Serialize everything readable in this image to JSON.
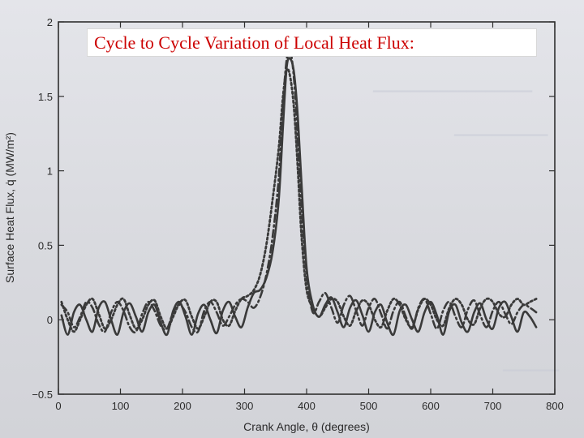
{
  "slide_title": "Cycle to Cycle Variation of Local Heat Flux:",
  "colors": {
    "title": "#cc0000",
    "line": "#3a3a3a",
    "background": "#dcdde2"
  },
  "chart_data": {
    "type": "line",
    "title": "",
    "xlabel": "Crank Angle, θ (degrees)",
    "ylabel": "Surface Heat Flux, q̇ (MW/m²)",
    "xlim": [
      0,
      800
    ],
    "ylim": [
      -0.5,
      2
    ],
    "xticks": [
      "0",
      "100",
      "200",
      "300",
      "400",
      "500",
      "600",
      "700",
      "800"
    ],
    "yticks": [
      "−0.5",
      "0",
      "0.5",
      "1",
      "1.5",
      "2"
    ],
    "grid": false,
    "legend": "none",
    "series": [
      {
        "style": "solid",
        "x": [
          5,
          15,
          25,
          35,
          45,
          55,
          65,
          75,
          85,
          95,
          105,
          115,
          125,
          135,
          145,
          155,
          165,
          175,
          185,
          195,
          205,
          215,
          225,
          235,
          245,
          255,
          265,
          275,
          285,
          295,
          305,
          315,
          325,
          335,
          345,
          355,
          362,
          368,
          374,
          380,
          386,
          392,
          400,
          410,
          420,
          430,
          440,
          450,
          460,
          470,
          480,
          490,
          500,
          510,
          520,
          530,
          540,
          550,
          560,
          570,
          580,
          590,
          600,
          610,
          620,
          630,
          640,
          650,
          660,
          670,
          680,
          690,
          700,
          710,
          720,
          730,
          740,
          750,
          760,
          770
        ],
        "y": [
          0.03,
          -0.1,
          0.05,
          0.1,
          0.0,
          -0.08,
          0.08,
          0.12,
          0.0,
          -0.1,
          0.05,
          0.11,
          0.02,
          -0.08,
          0.05,
          0.1,
          -0.02,
          -0.1,
          0.06,
          0.12,
          0.02,
          -0.1,
          0.04,
          0.1,
          0.0,
          -0.09,
          0.06,
          0.12,
          0.02,
          -0.05,
          0.08,
          0.18,
          0.2,
          0.28,
          0.45,
          0.8,
          1.3,
          1.7,
          1.75,
          1.65,
          1.35,
          0.9,
          0.35,
          0.1,
          0.02,
          0.1,
          0.15,
          0.05,
          -0.05,
          0.08,
          0.13,
          0.03,
          -0.08,
          0.05,
          0.1,
          -0.02,
          -0.1,
          0.06,
          0.1,
          0.0,
          -0.08,
          0.05,
          0.12,
          0.03,
          -0.1,
          0.06,
          0.1,
          -0.02,
          -0.08,
          0.05,
          0.11,
          0.0,
          -0.06,
          0.08,
          0.12,
          0.02,
          -0.08,
          0.05,
          0.02,
          -0.05
        ]
      },
      {
        "style": "dash-dot",
        "x": [
          5,
          15,
          25,
          35,
          45,
          55,
          65,
          75,
          85,
          95,
          105,
          115,
          125,
          135,
          145,
          155,
          165,
          175,
          185,
          195,
          205,
          215,
          225,
          235,
          245,
          255,
          265,
          275,
          285,
          295,
          305,
          315,
          325,
          335,
          345,
          355,
          362,
          368,
          374,
          380,
          386,
          392,
          400,
          410,
          420,
          430,
          440,
          450,
          460,
          470,
          480,
          490,
          500,
          510,
          520,
          530,
          540,
          550,
          560,
          570,
          580,
          590,
          600,
          610,
          620,
          630,
          640,
          650,
          660,
          670,
          680,
          690,
          700,
          710,
          720,
          730,
          740,
          750,
          760,
          770
        ],
        "y": [
          0.1,
          0.05,
          -0.05,
          0.02,
          0.12,
          0.08,
          -0.03,
          -0.08,
          0.05,
          0.12,
          0.06,
          -0.05,
          -0.08,
          0.04,
          0.12,
          0.06,
          -0.04,
          -0.06,
          0.05,
          0.1,
          0.05,
          -0.05,
          -0.08,
          0.06,
          0.12,
          0.05,
          -0.04,
          0.02,
          0.1,
          0.14,
          0.12,
          0.08,
          0.15,
          0.3,
          0.55,
          0.95,
          1.45,
          1.75,
          1.8,
          1.6,
          1.2,
          0.75,
          0.3,
          0.05,
          0.12,
          0.18,
          0.08,
          -0.02,
          0.1,
          0.16,
          0.06,
          -0.04,
          0.08,
          0.14,
          0.04,
          -0.06,
          0.06,
          0.12,
          0.02,
          -0.06,
          0.08,
          0.14,
          0.04,
          -0.06,
          0.06,
          0.12,
          0.02,
          -0.05,
          0.07,
          0.13,
          0.03,
          -0.05,
          0.06,
          0.12,
          0.04,
          -0.03,
          0.05,
          0.1,
          0.08,
          0.05
        ]
      },
      {
        "style": "dotted",
        "x": [
          5,
          15,
          25,
          35,
          45,
          55,
          65,
          75,
          85,
          95,
          105,
          115,
          125,
          135,
          145,
          155,
          165,
          175,
          185,
          195,
          205,
          215,
          225,
          235,
          245,
          255,
          265,
          275,
          285,
          295,
          305,
          315,
          325,
          335,
          345,
          355,
          362,
          368,
          374,
          380,
          386,
          392,
          400,
          410,
          420,
          430,
          440,
          450,
          460,
          470,
          480,
          490,
          500,
          510,
          520,
          530,
          540,
          550,
          560,
          570,
          580,
          590,
          600,
          610,
          620,
          630,
          640,
          650,
          660,
          670,
          680,
          690,
          700,
          710,
          720,
          730,
          740,
          750,
          760,
          770
        ],
        "y": [
          0.12,
          0.0,
          -0.08,
          0.0,
          0.1,
          0.14,
          0.04,
          -0.06,
          0.0,
          0.1,
          0.14,
          0.03,
          -0.06,
          0.0,
          0.1,
          0.13,
          0.02,
          -0.06,
          0.02,
          0.11,
          0.13,
          0.02,
          -0.06,
          0.02,
          0.12,
          0.12,
          0.0,
          -0.04,
          0.06,
          0.14,
          0.16,
          0.2,
          0.3,
          0.5,
          0.8,
          1.15,
          1.5,
          1.68,
          1.62,
          1.4,
          1.0,
          0.55,
          0.2,
          0.08,
          0.02,
          0.08,
          0.14,
          0.12,
          0.02,
          -0.04,
          0.06,
          0.13,
          0.1,
          0.0,
          -0.05,
          0.06,
          0.14,
          0.1,
          0.0,
          -0.05,
          0.07,
          0.14,
          0.1,
          0.0,
          -0.04,
          0.08,
          0.14,
          0.1,
          0.0,
          -0.03,
          0.08,
          0.14,
          0.12,
          0.04,
          0.02,
          0.1,
          0.14,
          0.1,
          0.12,
          0.14
        ]
      }
    ]
  }
}
